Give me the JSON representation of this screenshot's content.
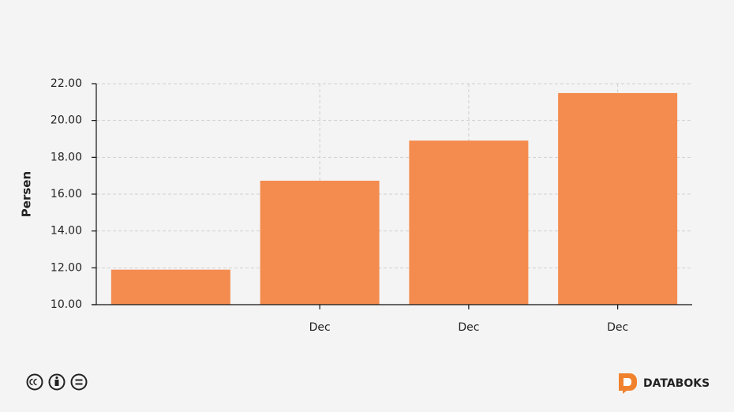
{
  "chart_data": {
    "type": "bar",
    "ylabel": "Persen",
    "categories": [
      null,
      "Dec",
      "Dec",
      "Dec"
    ],
    "values": [
      11.9,
      16.73,
      18.91,
      21.49
    ],
    "color": "#f48c4f",
    "ylim": [
      10,
      22
    ],
    "yticks": [
      {
        "value": 10,
        "label": "10.00"
      },
      {
        "value": 12,
        "label": "12.00"
      },
      {
        "value": 14,
        "label": "14.00"
      },
      {
        "value": 16,
        "label": "16.00"
      },
      {
        "value": 18,
        "label": "18.00"
      },
      {
        "value": 20,
        "label": "20.00"
      },
      {
        "value": 22,
        "label": "22.00"
      }
    ],
    "grid": true
  },
  "brand": "DATABOKS"
}
